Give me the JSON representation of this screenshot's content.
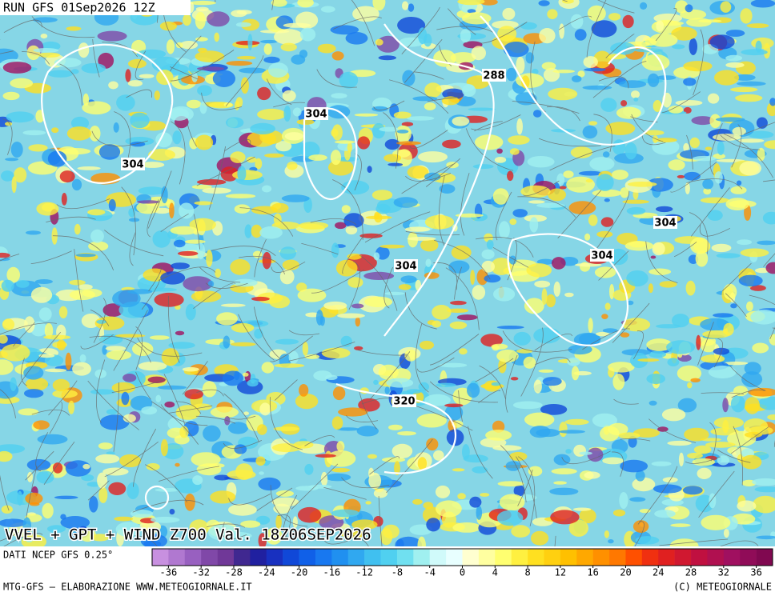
{
  "header": {
    "run": "RUN GFS 01Sep2026 12Z"
  },
  "map": {
    "title": "VVEL + GPT + WIND Z700 Val. 18Z06SEP2026",
    "contour_labels": [
      "288",
      "304",
      "304",
      "304",
      "304",
      "304",
      "320"
    ]
  },
  "colorbar": {
    "source": "DATI NCEP GFS 0.25°",
    "range": [
      -38,
      38
    ],
    "ticks": [
      -36,
      -32,
      -28,
      -24,
      -20,
      -16,
      -12,
      -8,
      -4,
      0,
      4,
      8,
      12,
      16,
      20,
      24,
      28,
      32,
      36
    ],
    "colors": [
      "#c890e0",
      "#b078d0",
      "#9860c0",
      "#8048a8",
      "#703898",
      "#402890",
      "#2020a0",
      "#1830c0",
      "#1048d8",
      "#1060e8",
      "#1878f0",
      "#2090f0",
      "#30a8f0",
      "#40c0f0",
      "#50d0f0",
      "#70e0f0",
      "#a0f0f0",
      "#d0fafa",
      "#e8ffff",
      "#ffffd0",
      "#ffffa0",
      "#ffff70",
      "#fff040",
      "#ffe020",
      "#ffd010",
      "#ffc000",
      "#ffa800",
      "#ff9000",
      "#ff7800",
      "#ff5000",
      "#f03010",
      "#e02020",
      "#d01830",
      "#c01040",
      "#b01050",
      "#a01060",
      "#900c58",
      "#800850"
    ]
  },
  "footer": {
    "left": "MTG-GFS – ELABORAZIONE WWW.METEOGIORNALE.IT",
    "right": "(C) METEOGIORNALE"
  }
}
